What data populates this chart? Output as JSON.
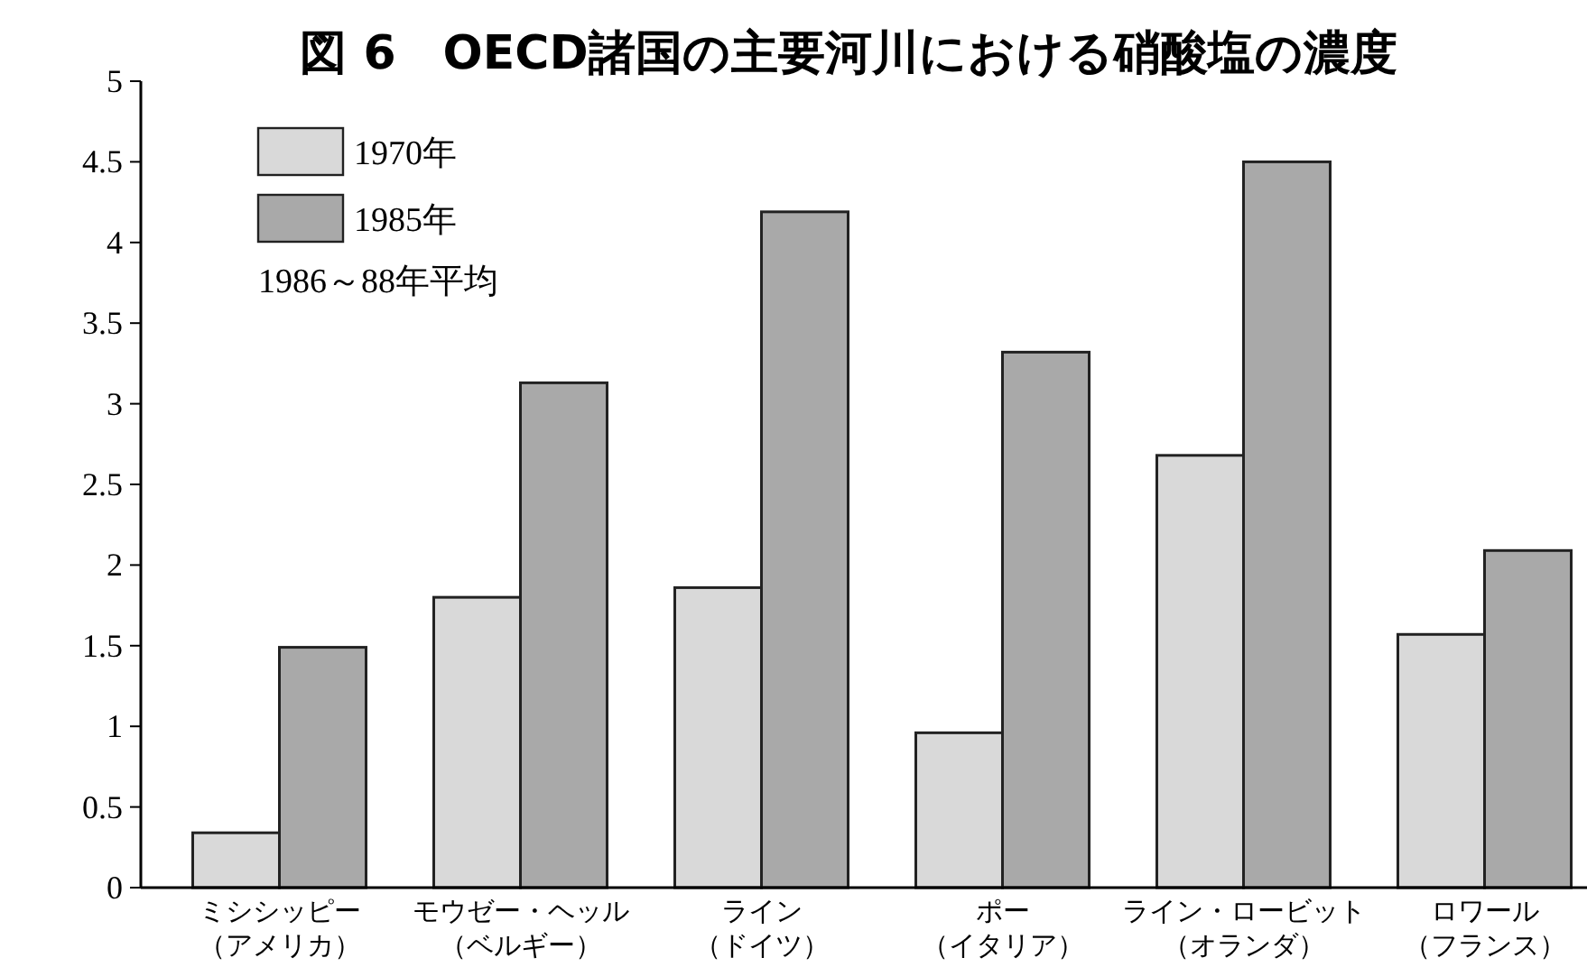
{
  "chart_data": {
    "type": "bar",
    "title": "図 6　OECD諸国の主要河川における硝酸塩の濃度",
    "categories": [
      "ミシシッピー（アメリカ）",
      "モウゼー・ヘッル（ベルギー）",
      "ライン（ドイツ）",
      "ポー（イタリア）",
      "ライン・ロービット（オランダ）",
      "ロワール（フランス）"
    ],
    "series": [
      {
        "name": "1970年",
        "color": "#d9d9d9",
        "values": [
          0.34,
          1.8,
          1.86,
          0.96,
          2.68,
          1.57
        ]
      },
      {
        "name": "1985年",
        "color": "#a9a9a9",
        "values": [
          1.49,
          3.13,
          4.19,
          3.32,
          4.5,
          2.09
        ]
      }
    ],
    "annotations": [
      "1986～88年平均"
    ],
    "ylim": [
      0,
      5
    ],
    "yticks": [
      0,
      0.5,
      1,
      1.5,
      2,
      2.5,
      3,
      3.5,
      4,
      4.5,
      5
    ],
    "legend": "top left",
    "grid": false
  }
}
